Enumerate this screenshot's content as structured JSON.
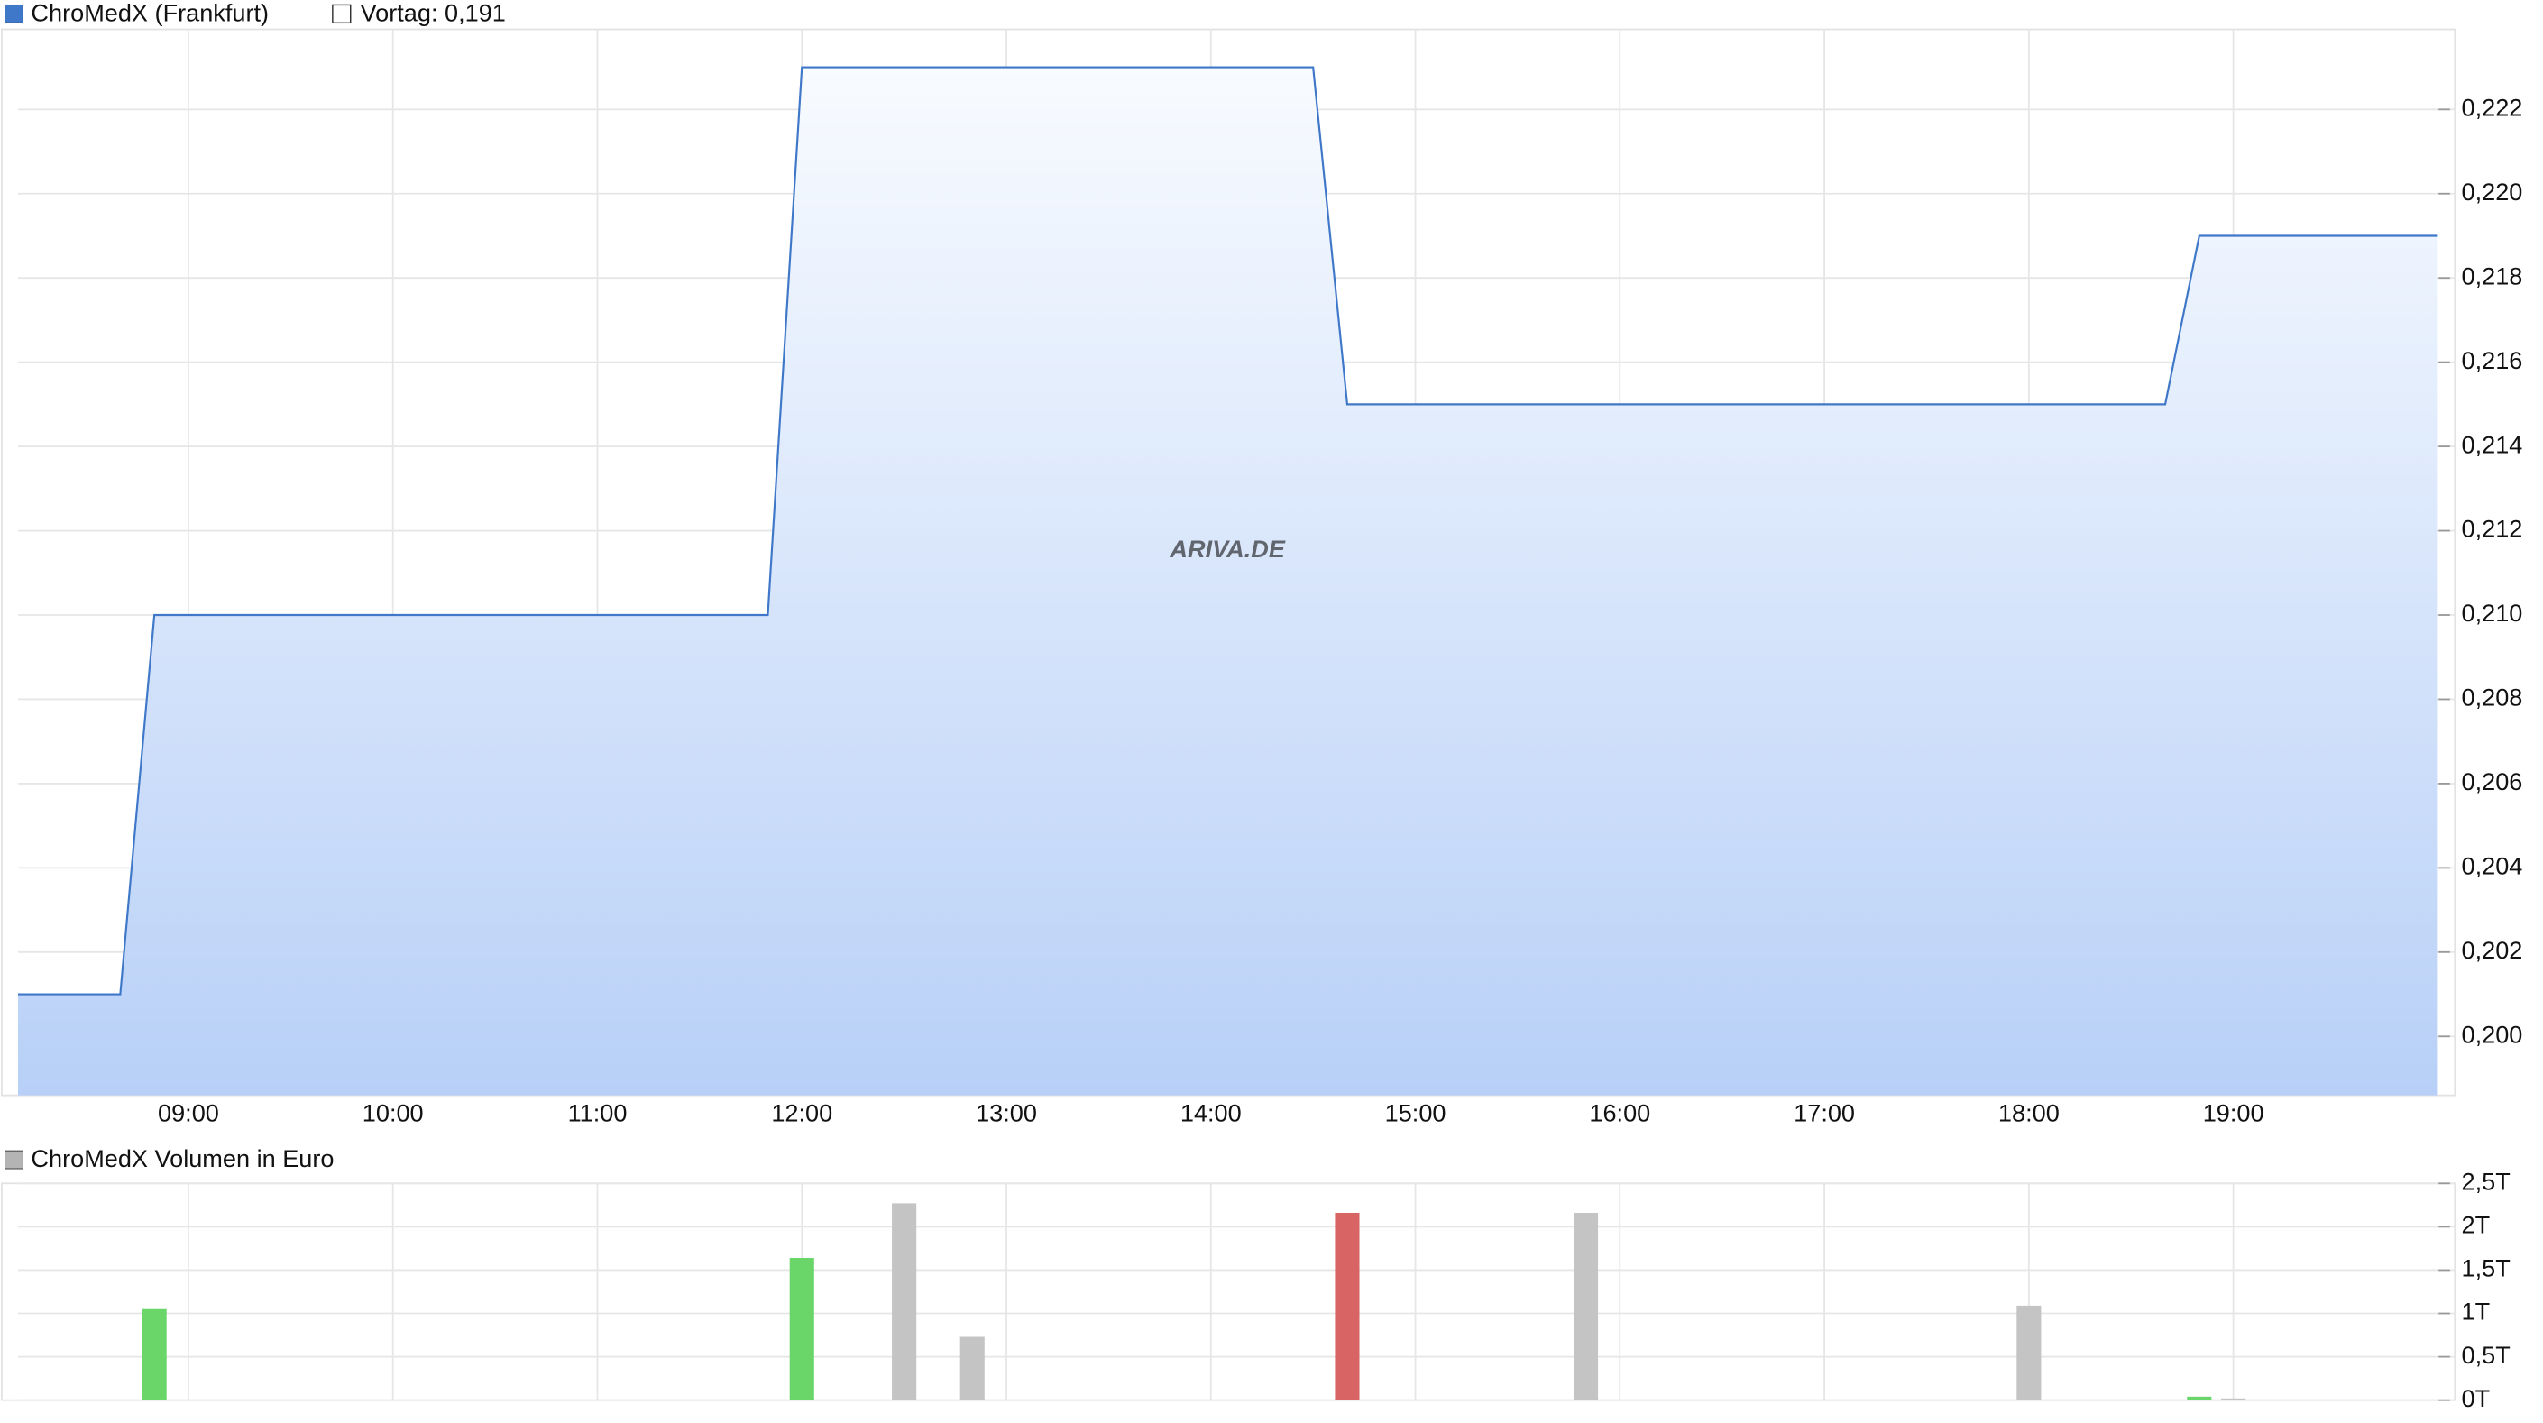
{
  "chart_data": [
    {
      "type": "area",
      "series": [
        {
          "name": "ChroMedX (Frankfurt)",
          "color": "#3f78c8",
          "x": [
            "08:10",
            "08:40",
            "08:50",
            "11:50",
            "12:00",
            "14:30",
            "14:40",
            "18:40",
            "18:50",
            "20:00"
          ],
          "values": [
            0.201,
            0.201,
            0.21,
            0.21,
            0.223,
            0.223,
            0.215,
            0.215,
            0.219,
            0.219
          ]
        }
      ],
      "reference_label": "Vortag: 0,191",
      "watermark": "ARIVA.DE",
      "xlim": [
        "08:10",
        "20:05"
      ],
      "xticks": [
        "09:00",
        "10:00",
        "11:00",
        "12:00",
        "13:00",
        "14:00",
        "15:00",
        "16:00",
        "17:00",
        "18:00",
        "19:00"
      ],
      "ylim": [
        0.1986,
        0.2239
      ],
      "yticks": [
        {
          "value": 0.2,
          "label": "0,200"
        },
        {
          "value": 0.202,
          "label": "0,202"
        },
        {
          "value": 0.204,
          "label": "0,204"
        },
        {
          "value": 0.206,
          "label": "0,206"
        },
        {
          "value": 0.208,
          "label": "0,208"
        },
        {
          "value": 0.21,
          "label": "0,210"
        },
        {
          "value": 0.212,
          "label": "0,212"
        },
        {
          "value": 0.214,
          "label": "0,214"
        },
        {
          "value": 0.216,
          "label": "0,216"
        },
        {
          "value": 0.218,
          "label": "0,218"
        },
        {
          "value": 0.22,
          "label": "0,220"
        },
        {
          "value": 0.222,
          "label": "0,222"
        }
      ],
      "grid": true
    },
    {
      "type": "bar",
      "series": [
        {
          "name": "ChroMedX Volumen in Euro",
          "color": "#b4b4b4",
          "x": [
            "08:50",
            "12:00",
            "12:30",
            "12:50",
            "14:40",
            "15:50",
            "18:00",
            "18:50",
            "19:00"
          ],
          "values": [
            1.05,
            1.64,
            2.27,
            0.73,
            2.16,
            2.16,
            1.09,
            0.04,
            0.02
          ],
          "colors": [
            "#6ad66a",
            "#6ad66a",
            "#c4c4c4",
            "#c4c4c4",
            "#d96464",
            "#c4c4c4",
            "#c4c4c4",
            "#6ad66a",
            "#c4c4c4"
          ]
        }
      ],
      "ylim": [
        0,
        2.5
      ],
      "yticks": [
        {
          "value": 0,
          "label": "0T"
        },
        {
          "value": 0.5,
          "label": "0,5T"
        },
        {
          "value": 1,
          "label": "1T"
        },
        {
          "value": 1.5,
          "label": "1,5T"
        },
        {
          "value": 2,
          "label": "2T"
        },
        {
          "value": 2.5,
          "label": "2,5T"
        }
      ],
      "grid": true
    }
  ]
}
